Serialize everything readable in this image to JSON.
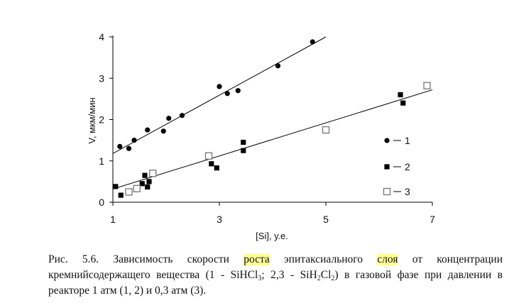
{
  "chart_data": {
    "type": "scatter",
    "ylabel": "V, мкм/мин",
    "xlabel": "[Si],  у.е.",
    "xlim": [
      1,
      7
    ],
    "ylim": [
      0,
      4
    ],
    "x_ticks": [
      "1",
      "3",
      "5",
      "7"
    ],
    "y_ticks": [
      "0",
      "1",
      "2",
      "3",
      "4"
    ],
    "grid": false,
    "legend_position": "right",
    "series": [
      {
        "name": "1",
        "marker": "filled-circle",
        "points": [
          [
            1.13,
            1.35
          ],
          [
            1.3,
            1.3
          ],
          [
            1.4,
            1.5
          ],
          [
            1.65,
            1.75
          ],
          [
            1.95,
            1.72
          ],
          [
            2.05,
            2.03
          ],
          [
            2.3,
            2.1
          ],
          [
            3.0,
            2.8
          ],
          [
            3.15,
            2.63
          ],
          [
            3.35,
            2.7
          ],
          [
            4.1,
            3.3
          ],
          [
            4.75,
            3.88
          ]
        ]
      },
      {
        "name": "2",
        "marker": "filled-square",
        "points": [
          [
            1.05,
            0.38
          ],
          [
            1.15,
            0.17
          ],
          [
            1.55,
            0.45
          ],
          [
            1.6,
            0.65
          ],
          [
            1.65,
            0.37
          ],
          [
            1.68,
            0.5
          ],
          [
            2.85,
            0.93
          ],
          [
            2.95,
            0.83
          ],
          [
            3.45,
            1.45
          ],
          [
            3.45,
            1.25
          ],
          [
            6.4,
            2.6
          ],
          [
            6.45,
            2.4
          ]
        ]
      },
      {
        "name": "3",
        "marker": "open-square",
        "points": [
          [
            1.3,
            0.25
          ],
          [
            1.45,
            0.33
          ],
          [
            1.75,
            0.7
          ],
          [
            2.8,
            1.12
          ],
          [
            5.0,
            1.75
          ],
          [
            6.9,
            2.82
          ]
        ]
      }
    ],
    "fit_lines": [
      {
        "series": "1",
        "from": [
          1.0,
          1.18
        ],
        "to": [
          5.0,
          4.0
        ]
      },
      {
        "series": "2,3",
        "from": [
          1.0,
          0.32
        ],
        "to": [
          7.0,
          2.72
        ]
      }
    ]
  },
  "caption": {
    "part1": "Рис. 5.6. Зависимость скорости ",
    "hl1": "роста",
    "part2": " эпитаксиального ",
    "hl2": "слоя",
    "part3": " от концентрации кремнийсодержащего вещества (1 - SiHCl",
    "sub1": "3",
    "part4": "; 2,3 - SiH",
    "sub2": "2",
    "part5": "Cl",
    "sub3": "2",
    "part6": ") в газовой фазе при давлении в реакторе 1 атм (1, 2) и 0,3 атм (3)."
  }
}
